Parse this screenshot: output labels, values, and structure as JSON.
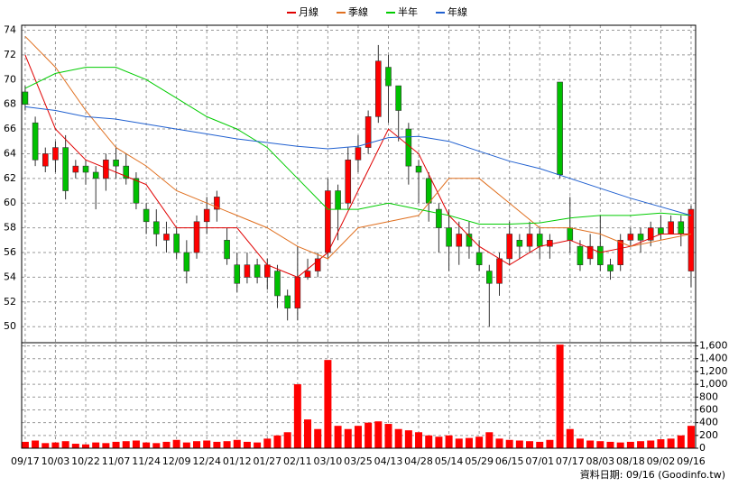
{
  "chart_data": {
    "type": "candlestick",
    "xlim": [
      -0.35,
      66.45
    ],
    "xticks": [
      {
        "value": 0,
        "label": "09/17"
      },
      {
        "value": 3,
        "label": "10/03"
      },
      {
        "value": 6,
        "label": "10/22"
      },
      {
        "value": 9,
        "label": "11/07"
      },
      {
        "value": 12,
        "label": "11/24"
      },
      {
        "value": 15,
        "label": "12/09"
      },
      {
        "value": 18,
        "label": "12/24"
      },
      {
        "value": 21,
        "label": "01/12"
      },
      {
        "value": 24,
        "label": "01/27"
      },
      {
        "value": 27,
        "label": "02/11"
      },
      {
        "value": 30,
        "label": "03/10"
      },
      {
        "value": 33,
        "label": "03/25"
      },
      {
        "value": 36,
        "label": "04/13"
      },
      {
        "value": 39,
        "label": "04/28"
      },
      {
        "value": 42,
        "label": "05/14"
      },
      {
        "value": 45,
        "label": "05/29"
      },
      {
        "value": 48,
        "label": "06/15"
      },
      {
        "value": 51,
        "label": "07/01"
      },
      {
        "value": 54,
        "label": "07/17"
      },
      {
        "value": 57,
        "label": "08/03"
      },
      {
        "value": 60,
        "label": "08/18"
      },
      {
        "value": 63,
        "label": "09/02"
      },
      {
        "value": 66,
        "label": "09/16"
      }
    ],
    "ylim": [
      48.7,
      74.4
    ],
    "yticks": [
      50,
      52,
      54,
      56,
      58,
      60,
      62,
      64,
      66,
      68,
      70,
      72,
      74
    ],
    "grid": true,
    "up_color": "#ff0000",
    "down_color": "#00c000",
    "open": [
      69,
      66.5,
      63,
      63.5,
      64.5,
      62.5,
      63,
      62.5,
      62,
      63.5,
      63,
      62,
      59.5,
      58.5,
      57,
      57.5,
      56,
      56,
      58.5,
      59.5,
      57,
      55,
      54,
      55,
      54,
      54.5,
      52.5,
      51.5,
      54,
      54.5,
      56,
      61,
      60,
      63.5,
      64.5,
      67,
      71,
      69.5,
      66,
      63,
      62,
      59.5,
      58,
      56.5,
      57.5,
      56,
      54.5,
      53.5,
      55.5,
      57,
      56.5,
      57.5,
      56.5,
      69.8,
      58,
      56.5,
      55.5,
      56.5,
      55,
      55,
      57,
      57.5,
      57,
      58,
      57.5,
      58.5,
      54.5
    ],
    "high": [
      69.5,
      67,
      64.5,
      65,
      65.5,
      63.5,
      63.5,
      63,
      64,
      64.5,
      64,
      62.5,
      60,
      59.5,
      58.5,
      58,
      57,
      59,
      60.5,
      61,
      58,
      56,
      56,
      55.5,
      55.5,
      55,
      53,
      56.5,
      55.5,
      56,
      62,
      61.5,
      64.5,
      65.5,
      67.5,
      72.8,
      72,
      69.5,
      66.5,
      63.5,
      62.5,
      60,
      59.5,
      58.5,
      58.5,
      57,
      55,
      56,
      58.5,
      57.5,
      58.5,
      58,
      57.5,
      69.8,
      60.5,
      57,
      57.5,
      59,
      55.5,
      57.5,
      58,
      58,
      58.5,
      59,
      59,
      59,
      59.8
    ],
    "low": [
      67.5,
      63,
      62.5,
      62.5,
      60.3,
      62,
      61.5,
      59.5,
      61,
      62,
      61.5,
      59.5,
      57.5,
      56.5,
      56,
      55.5,
      53.5,
      55.5,
      57.5,
      58.5,
      55,
      52.8,
      53.5,
      53.5,
      53,
      51.5,
      50.5,
      50.5,
      53.8,
      54,
      55.5,
      57,
      59.5,
      62.5,
      64,
      66.5,
      66.5,
      65,
      61.5,
      60,
      58.5,
      56,
      54.5,
      55,
      55.5,
      54.5,
      50,
      52.5,
      55,
      55.5,
      56,
      55.5,
      55.5,
      62,
      56,
      54.5,
      55,
      54.5,
      53.8,
      54.5,
      56.5,
      56,
      56.5,
      57,
      57.5,
      56.5,
      53.2
    ],
    "close": [
      68,
      63.5,
      64,
      64.5,
      61,
      63,
      62.5,
      62,
      63.5,
      63,
      62,
      60,
      58.5,
      57.5,
      57.5,
      56,
      54.5,
      58.5,
      59.5,
      60.5,
      55.5,
      53.5,
      55,
      54,
      55,
      52.5,
      51.5,
      54,
      54.5,
      55.5,
      61,
      59.5,
      63.5,
      64.5,
      67,
      71.5,
      69.5,
      67.5,
      63,
      62.5,
      60,
      58,
      56.5,
      57.5,
      56.5,
      55,
      53.5,
      55.5,
      57.5,
      56.5,
      57.5,
      56.5,
      57,
      62.3,
      57,
      55,
      56.5,
      55,
      54.5,
      57,
      57.5,
      57,
      58,
      57.5,
      58.5,
      57.5,
      59.5
    ],
    "ma_x": [
      0,
      3,
      6,
      9,
      12,
      15,
      18,
      21,
      24,
      27,
      30,
      33,
      36,
      39,
      42,
      45,
      48,
      51,
      54,
      57,
      60,
      63,
      66
    ],
    "series": [
      {
        "name": "月線",
        "color": "#e00000",
        "values": [
          72,
          66,
          63.5,
          62.5,
          61.5,
          58,
          58,
          58,
          55,
          54,
          56,
          61,
          66,
          64,
          59,
          56.5,
          55,
          56.5,
          57,
          56,
          56.5,
          57.5,
          57.5
        ]
      },
      {
        "name": "季線",
        "color": "#e07020",
        "values": [
          73.5,
          71,
          67.5,
          64.5,
          63,
          61,
          60,
          59,
          58,
          56.5,
          55.5,
          58,
          58.5,
          59,
          62,
          62,
          60,
          58,
          58,
          57.5,
          56.5,
          57,
          57.5
        ]
      },
      {
        "name": "半年",
        "color": "#00cc00",
        "values": [
          69.3,
          70.5,
          71,
          71,
          70,
          68.5,
          67,
          66,
          64.5,
          62,
          59.5,
          59.5,
          60,
          59.5,
          59,
          58.3,
          58.3,
          58.4,
          58.8,
          59,
          59,
          59.2,
          59
        ]
      },
      {
        "name": "年線",
        "color": "#2060d0",
        "values": [
          67.8,
          67.5,
          67,
          66.8,
          66.4,
          66,
          65.6,
          65.2,
          64.9,
          64.6,
          64.4,
          64.6,
          65.3,
          65.4,
          65,
          64.2,
          63.4,
          62.8,
          62,
          61.2,
          60.4,
          59.7,
          59
        ]
      }
    ],
    "volume": {
      "color": "#ff0000",
      "ylim": [
        0,
        1650
      ],
      "yticks": [
        0,
        200,
        400,
        600,
        800,
        {
          "value": 1000,
          "label": "1,000"
        },
        {
          "value": 1200,
          "label": "1,200"
        },
        {
          "value": 1400,
          "label": "1,400"
        },
        {
          "value": 1600,
          "label": "1,600"
        }
      ],
      "values": [
        100,
        120,
        80,
        90,
        110,
        70,
        60,
        90,
        80,
        100,
        110,
        120,
        90,
        80,
        100,
        130,
        90,
        110,
        120,
        100,
        110,
        130,
        100,
        90,
        150,
        200,
        250,
        1000,
        450,
        300,
        1380,
        350,
        300,
        350,
        400,
        420,
        380,
        300,
        280,
        250,
        200,
        180,
        200,
        150,
        160,
        180,
        250,
        150,
        130,
        120,
        110,
        100,
        130,
        1620,
        300,
        150,
        120,
        110,
        100,
        90,
        100,
        110,
        120,
        140,
        150,
        200,
        350
      ]
    }
  },
  "footer": "資料日期: 09/16 (Goodinfo.tw)"
}
